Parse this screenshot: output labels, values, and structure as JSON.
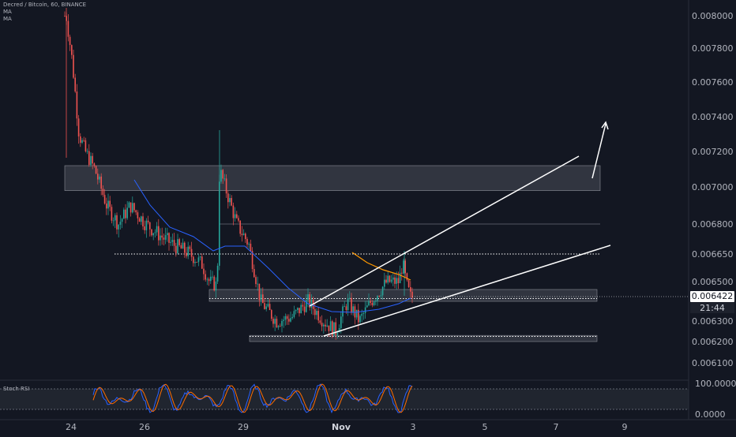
{
  "header": {
    "symbol_line": "Decred / Bitcoin, 60, BINANCE",
    "indicators": [
      "MA",
      "MA"
    ]
  },
  "colors": {
    "background": "#131722",
    "up": "#26a69a",
    "down": "#ef5350",
    "ma_blue": "#2962ff",
    "ma_orange": "#ff9800",
    "zone_fill": "#3a3e4a",
    "trendline": "#ffffff",
    "stoch_k": "#2962ff",
    "stoch_d": "#ff6d00"
  },
  "price_axis": {
    "ticks": [
      "0.008000",
      "0.007800",
      "0.007600",
      "0.007400",
      "0.007200",
      "0.007000",
      "0.006800",
      "0.006650",
      "0.006500",
      "0.006300",
      "0.006200",
      "0.006100"
    ],
    "current_price": "0.006422",
    "countdown": "21:44"
  },
  "time_axis": {
    "ticks": [
      "24",
      "26",
      "29",
      "Nov",
      "3",
      "5",
      "7",
      "9"
    ]
  },
  "stoch_rsi": {
    "label": "Stoch RSI",
    "ticks": [
      "100.0000",
      "0.0000"
    ]
  },
  "chart_data": {
    "type": "candlestick",
    "title": "Decred / Bitcoin, 60, BINANCE",
    "y_scale": "log",
    "zones": [
      {
        "from": 0.00698,
        "to": 0.00712
      },
      {
        "from": 0.0064,
        "to": 0.00646
      },
      {
        "from": 0.0062,
        "to": 0.00623
      }
    ],
    "levels": [
      0.0068,
      0.00665
    ],
    "current_price": 0.006422,
    "price_path_hint": [
      0.008,
      0.0074,
      0.0071,
      0.0069,
      0.0067,
      0.00672,
      0.00665,
      0.0066,
      0.0065,
      0.00645,
      0.0072,
      0.007,
      0.0068,
      0.0066,
      0.0064,
      0.0063,
      0.00635,
      0.0063,
      0.0064,
      0.0065,
      0.0066,
      0.0065,
      0.00642
    ]
  }
}
